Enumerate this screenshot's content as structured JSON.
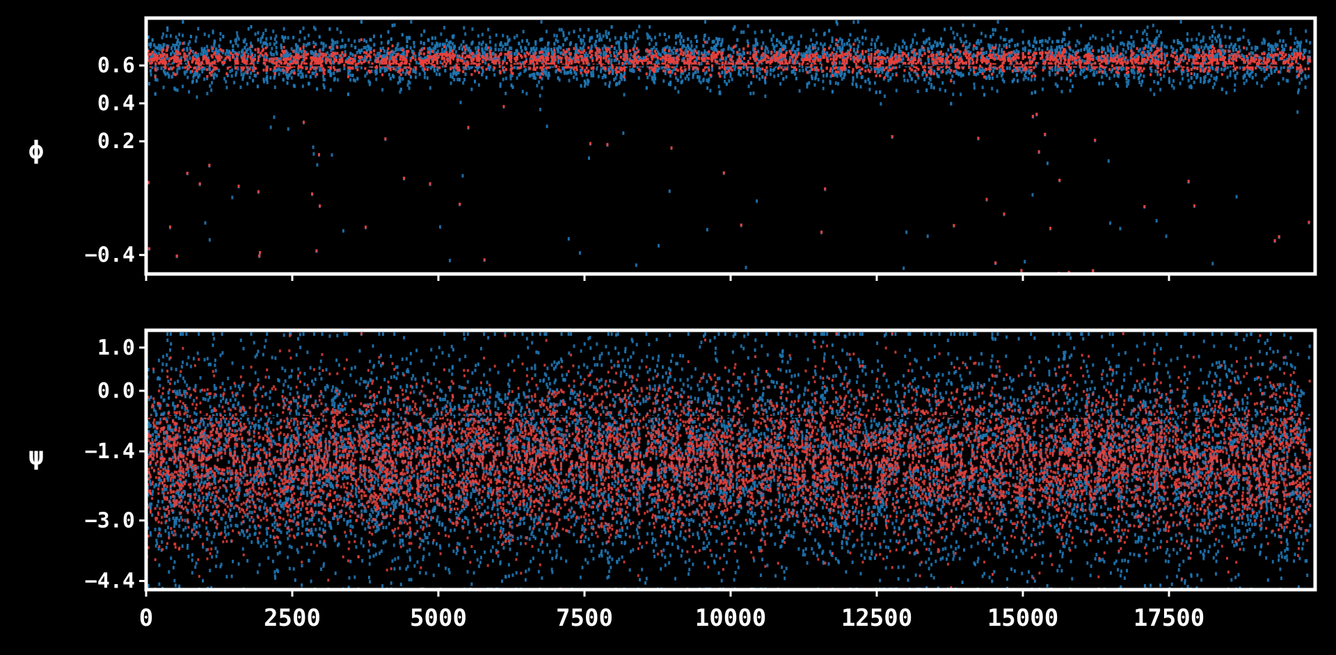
{
  "chart_data": [
    {
      "type": "scatter",
      "ylabel": "ϕ",
      "xlim": [
        0,
        20000
      ],
      "ylim": [
        -0.5,
        0.85
      ],
      "reference_line_y": 0.6,
      "x_ticks": [
        0,
        2500,
        5000,
        7500,
        10000,
        12500,
        15000,
        17500
      ],
      "y_ticks": [
        0.6,
        0.4,
        0.2,
        -0.4
      ],
      "y_tick_labels": [
        "0.6",
        "0.4",
        "0.2",
        "−0.4"
      ],
      "series": [
        {
          "color": "#1f77b4",
          "center": 0.64,
          "spread": 0.1
        },
        {
          "color": "#e8413c",
          "center": 0.63,
          "spread": 0.045
        }
      ]
    },
    {
      "type": "scatter",
      "ylabel": "ψ",
      "xlim": [
        0,
        20000
      ],
      "ylim": [
        -4.6,
        1.4
      ],
      "reference_line_y": -0.6,
      "x_ticks": [
        0,
        2500,
        5000,
        7500,
        10000,
        12500,
        15000,
        17500
      ],
      "x_tick_labels": [
        "0",
        "2500",
        "5000",
        "7500",
        "10000",
        "12500",
        "15000",
        "17500"
      ],
      "y_ticks": [
        1.0,
        0.0,
        -1.4,
        -3.0,
        -4.4
      ],
      "y_tick_labels": [
        "1.0",
        "0.0",
        "−1.4",
        "−3.0",
        "−4.4"
      ],
      "series": [
        {
          "color": "#1f77b4",
          "center": -1.6,
          "spread": 2.3
        },
        {
          "color": "#e8413c",
          "center": -1.6,
          "spread": 1.6
        }
      ]
    }
  ]
}
